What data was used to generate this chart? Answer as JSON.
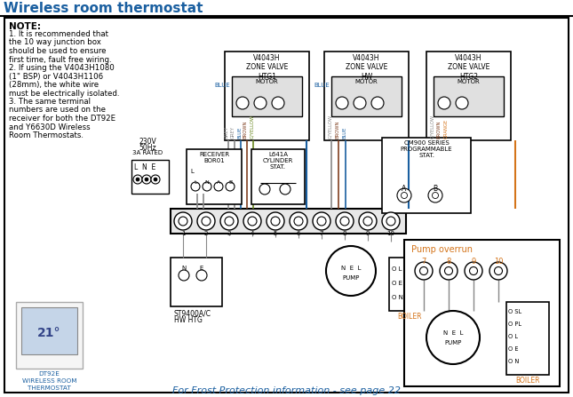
{
  "title": "Wireless room thermostat",
  "title_color": "#1a5fa0",
  "bg_color": "#ffffff",
  "border_color": "#000000",
  "note_bold": "NOTE:",
  "note_lines": [
    "1. It is recommended that",
    "the 10 way junction box",
    "should be used to ensure",
    "first time, fault free wiring.",
    "2. If using the V4043H1080",
    "(1\" BSP) or V4043H1106",
    "(28mm), the white wire",
    "must be electrically isolated.",
    "3. The same terminal",
    "numbers are used on the",
    "receiver for both the DT92E",
    "and Y6630D Wireless",
    "Room Thermostats."
  ],
  "footer_text": "For Frost Protection information - see page 22",
  "footer_color": "#1a5fa0",
  "dt92e_lines": [
    "DT92E",
    "WIRELESS ROOM",
    "THERMOSTAT"
  ],
  "v_label1": "V4043H\nZONE VALVE\nHTG1",
  "v_label2": "V4043H\nZONE VALVE\nHW",
  "v_label3": "V4043H\nZONE VALVE\nHTG2",
  "receiver_label": "RECEIVER\nBOR01",
  "cyl_stat_label": "L641A\nCYLINDER\nSTAT.",
  "cm900_label": "CM900 SERIES\nPROGRAMMABLE\nSTAT.",
  "pump_overrun_label": "Pump overrun",
  "boiler_label": "BOILER",
  "st9400_label": "ST9400A/C",
  "hw_htg_label": "HW HTG",
  "blue": "#1a5fa0",
  "orange": "#d4741a",
  "grey": "#888888",
  "brown": "#804020",
  "gy": "#6a8820",
  "black": "#000000",
  "red": "#cc2222"
}
